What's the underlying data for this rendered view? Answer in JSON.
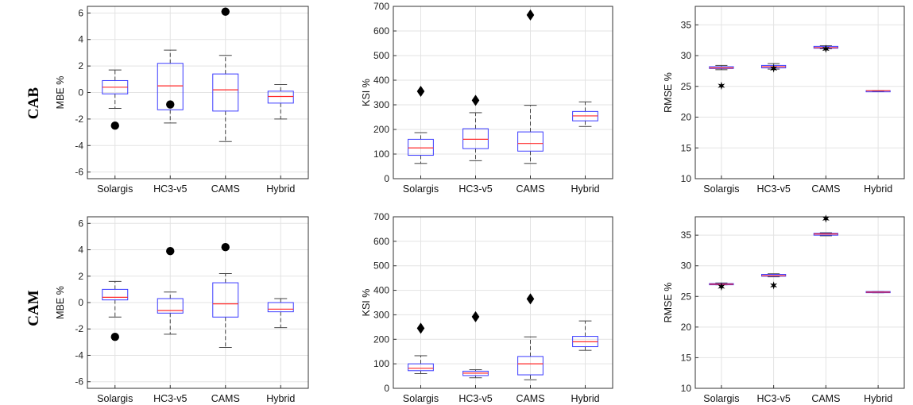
{
  "row_labels": [
    "CAB",
    "CAM"
  ],
  "chart_data": [
    {
      "type": "box",
      "row": "CAB",
      "ylabel": "MBE %",
      "ylim": [
        -6.5,
        6.5
      ],
      "yticks": [
        -6,
        -4,
        -2,
        0,
        2,
        4,
        6
      ],
      "grid": true,
      "categories": [
        "Solargis",
        "HC3-v5",
        "CAMS",
        "Hybrid"
      ],
      "outlier_marker": "circle",
      "boxes": [
        {
          "category": "Solargis",
          "lower_whisker": -1.2,
          "q1": -0.1,
          "median": 0.4,
          "q3": 0.9,
          "upper_whisker": 1.7,
          "outliers": [
            -2.5
          ]
        },
        {
          "category": "HC3-v5",
          "lower_whisker": -2.3,
          "q1": -1.3,
          "median": 0.5,
          "q3": 2.2,
          "upper_whisker": 3.2,
          "outliers": [
            -0.9
          ]
        },
        {
          "category": "CAMS",
          "lower_whisker": -3.7,
          "q1": -1.4,
          "median": 0.2,
          "q3": 1.4,
          "upper_whisker": 2.8,
          "outliers": [
            6.1
          ]
        },
        {
          "category": "Hybrid",
          "lower_whisker": -2.0,
          "q1": -0.8,
          "median": -0.3,
          "q3": 0.1,
          "upper_whisker": 0.6,
          "outliers": []
        }
      ]
    },
    {
      "type": "box",
      "row": "CAB",
      "ylabel": "KSI %",
      "ylim": [
        0,
        700
      ],
      "yticks": [
        0,
        100,
        200,
        300,
        400,
        500,
        600,
        700
      ],
      "grid": true,
      "categories": [
        "Solargis",
        "HC3-v5",
        "CAMS",
        "Hybrid"
      ],
      "outlier_marker": "diamond",
      "boxes": [
        {
          "category": "Solargis",
          "lower_whisker": 62,
          "q1": 95,
          "median": 125,
          "q3": 160,
          "upper_whisker": 187,
          "outliers": [
            355
          ]
        },
        {
          "category": "HC3-v5",
          "lower_whisker": 73,
          "q1": 122,
          "median": 160,
          "q3": 203,
          "upper_whisker": 268,
          "outliers": [
            318
          ]
        },
        {
          "category": "CAMS",
          "lower_whisker": 62,
          "q1": 112,
          "median": 143,
          "q3": 190,
          "upper_whisker": 298,
          "outliers": [
            665
          ]
        },
        {
          "category": "Hybrid",
          "lower_whisker": 212,
          "q1": 235,
          "median": 255,
          "q3": 273,
          "upper_whisker": 312,
          "outliers": []
        }
      ]
    },
    {
      "type": "box",
      "row": "CAB",
      "ylabel": "RMSE %",
      "ylim": [
        10,
        38
      ],
      "yticks": [
        10,
        15,
        20,
        25,
        30,
        35
      ],
      "grid": true,
      "categories": [
        "Solargis",
        "HC3-v5",
        "CAMS",
        "Hybrid"
      ],
      "outlier_marker": "star",
      "boxes": [
        {
          "category": "Solargis",
          "lower_whisker": 27.7,
          "q1": 27.9,
          "median": 28.0,
          "q3": 28.2,
          "upper_whisker": 28.4,
          "outliers": [
            25.1
          ]
        },
        {
          "category": "HC3-v5",
          "lower_whisker": 27.8,
          "q1": 28.0,
          "median": 28.2,
          "q3": 28.4,
          "upper_whisker": 28.7,
          "outliers": [
            27.9
          ]
        },
        {
          "category": "CAMS",
          "lower_whisker": 31.1,
          "q1": 31.2,
          "median": 31.3,
          "q3": 31.5,
          "upper_whisker": 31.6,
          "outliers": [
            31.1
          ]
        },
        {
          "category": "Hybrid",
          "lower_whisker": 24.2,
          "q1": 24.2,
          "median": 24.3,
          "q3": 24.3,
          "upper_whisker": 24.3,
          "outliers": []
        }
      ]
    },
    {
      "type": "box",
      "row": "CAM",
      "ylabel": "MBE %",
      "ylim": [
        -6.5,
        6.5
      ],
      "yticks": [
        -6,
        -4,
        -2,
        0,
        2,
        4,
        6
      ],
      "grid": true,
      "categories": [
        "Solargis",
        "HC3-v5",
        "CAMS",
        "Hybrid"
      ],
      "outlier_marker": "circle",
      "boxes": [
        {
          "category": "Solargis",
          "lower_whisker": -1.1,
          "q1": 0.2,
          "median": 0.4,
          "q3": 1.0,
          "upper_whisker": 1.6,
          "outliers": [
            -2.6
          ]
        },
        {
          "category": "HC3-v5",
          "lower_whisker": -2.4,
          "q1": -0.8,
          "median": -0.6,
          "q3": 0.3,
          "upper_whisker": 0.8,
          "outliers": [
            3.9
          ]
        },
        {
          "category": "CAMS",
          "lower_whisker": -3.4,
          "q1": -1.1,
          "median": -0.1,
          "q3": 1.5,
          "upper_whisker": 2.2,
          "outliers": [
            4.2
          ]
        },
        {
          "category": "Hybrid",
          "lower_whisker": -1.9,
          "q1": -0.7,
          "median": -0.5,
          "q3": 0.0,
          "upper_whisker": 0.3,
          "outliers": []
        }
      ]
    },
    {
      "type": "box",
      "row": "CAM",
      "ylabel": "KSI %",
      "ylim": [
        0,
        700
      ],
      "yticks": [
        0,
        100,
        200,
        300,
        400,
        500,
        600,
        700
      ],
      "grid": true,
      "categories": [
        "Solargis",
        "HC3-v5",
        "CAMS",
        "Hybrid"
      ],
      "outlier_marker": "diamond",
      "boxes": [
        {
          "category": "Solargis",
          "lower_whisker": 60,
          "q1": 72,
          "median": 82,
          "q3": 100,
          "upper_whisker": 133,
          "outliers": [
            245
          ]
        },
        {
          "category": "HC3-v5",
          "lower_whisker": 43,
          "q1": 52,
          "median": 62,
          "q3": 70,
          "upper_whisker": 76,
          "outliers": [
            292
          ]
        },
        {
          "category": "CAMS",
          "lower_whisker": 35,
          "q1": 55,
          "median": 100,
          "q3": 130,
          "upper_whisker": 210,
          "outliers": [
            365
          ]
        },
        {
          "category": "Hybrid",
          "lower_whisker": 155,
          "q1": 170,
          "median": 190,
          "q3": 212,
          "upper_whisker": 275,
          "outliers": []
        }
      ]
    },
    {
      "type": "box",
      "row": "CAM",
      "ylabel": "RMSE %",
      "ylim": [
        10,
        38
      ],
      "yticks": [
        10,
        15,
        20,
        25,
        30,
        35
      ],
      "grid": true,
      "categories": [
        "Solargis",
        "HC3-v5",
        "CAMS",
        "Hybrid"
      ],
      "outlier_marker": "star",
      "boxes": [
        {
          "category": "Solargis",
          "lower_whisker": 26.9,
          "q1": 26.9,
          "median": 27.0,
          "q3": 27.1,
          "upper_whisker": 27.2,
          "outliers": [
            26.6
          ]
        },
        {
          "category": "HC3-v5",
          "lower_whisker": 28.2,
          "q1": 28.3,
          "median": 28.4,
          "q3": 28.6,
          "upper_whisker": 28.7,
          "outliers": [
            26.8
          ]
        },
        {
          "category": "CAMS",
          "lower_whisker": 34.9,
          "q1": 35.0,
          "median": 35.2,
          "q3": 35.3,
          "upper_whisker": 35.4,
          "outliers": [
            37.7
          ]
        },
        {
          "category": "Hybrid",
          "lower_whisker": 25.6,
          "q1": 25.7,
          "median": 25.7,
          "q3": 25.8,
          "upper_whisker": 25.8,
          "outliers": []
        }
      ]
    }
  ],
  "colors": {
    "box": "#3a3aff",
    "median": "#ff2a2a",
    "whisker": "#444444",
    "grid": "#e3e3e3",
    "axes": "#333333",
    "marker": "#000000"
  }
}
